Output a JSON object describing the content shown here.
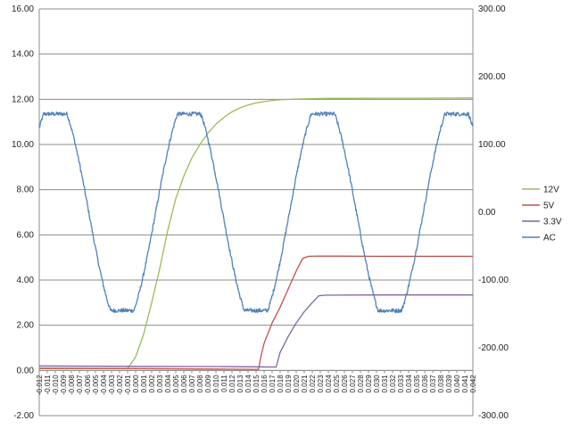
{
  "chart_data": {
    "type": "line",
    "x": {
      "min": -0.012,
      "max": 0.042,
      "step": 0.001,
      "tick_labels": [
        "-0.012",
        "-0.011",
        "-0.010",
        "-0.009",
        "-0.008",
        "-0.007",
        "-0.006",
        "-0.005",
        "-0.004",
        "-0.003",
        "-0.002",
        "-0.001",
        "0.000",
        "0.001",
        "0.002",
        "0.003",
        "0.004",
        "0.005",
        "0.006",
        "0.007",
        "0.008",
        "0.009",
        "0.010",
        "0.011",
        "0.012",
        "0.013",
        "0.014",
        "0.015",
        "0.016",
        "0.017",
        "0.018",
        "0.019",
        "0.020",
        "0.021",
        "0.022",
        "0.023",
        "0.024",
        "0.025",
        "0.026",
        "0.027",
        "0.028",
        "0.029",
        "0.030",
        "0.031",
        "0.032",
        "0.033",
        "0.034",
        "0.035",
        "0.036",
        "0.037",
        "0.038",
        "0.039",
        "0.040",
        "0.041",
        "0.042"
      ]
    },
    "y_left": {
      "min": -2,
      "max": 16,
      "tick_labels": [
        "-2.00",
        "0.00",
        "2.00",
        "4.00",
        "6.00",
        "8.00",
        "10.00",
        "12.00",
        "14.00",
        "16.00"
      ]
    },
    "y_right": {
      "min": -300,
      "max": 300,
      "tick_labels": [
        "-300.00",
        "-200.00",
        "-100.00",
        "0.00",
        "100.00",
        "200.00",
        "300.00"
      ]
    },
    "grid": "horizontal",
    "legend_position": "right",
    "series": [
      {
        "name": "12V",
        "axis": "left",
        "color": "#9BBB59",
        "points": [
          [
            -0.012,
            0.08
          ],
          [
            -0.002,
            0.08
          ],
          [
            -0.001,
            0.08
          ],
          [
            0.0,
            0.6
          ],
          [
            0.001,
            1.6
          ],
          [
            0.002,
            3.0
          ],
          [
            0.003,
            4.5
          ],
          [
            0.004,
            6.2
          ],
          [
            0.005,
            7.6
          ],
          [
            0.006,
            8.6
          ],
          [
            0.007,
            9.4
          ],
          [
            0.008,
            10.0
          ],
          [
            0.009,
            10.5
          ],
          [
            0.01,
            10.9
          ],
          [
            0.011,
            11.2
          ],
          [
            0.012,
            11.45
          ],
          [
            0.013,
            11.62
          ],
          [
            0.014,
            11.75
          ],
          [
            0.015,
            11.84
          ],
          [
            0.016,
            11.9
          ],
          [
            0.017,
            11.95
          ],
          [
            0.018,
            11.98
          ],
          [
            0.02,
            12.01
          ],
          [
            0.022,
            12.03
          ],
          [
            0.024,
            12.04
          ],
          [
            0.026,
            12.04
          ],
          [
            0.03,
            12.05
          ],
          [
            0.035,
            12.05
          ],
          [
            0.042,
            12.06
          ]
        ]
      },
      {
        "name": "5V",
        "axis": "left",
        "color": "#C0504D",
        "points": [
          [
            -0.012,
            0.1
          ],
          [
            0.0,
            0.08
          ],
          [
            0.01,
            0.06
          ],
          [
            0.015,
            0.05
          ],
          [
            0.0153,
            0.05
          ],
          [
            0.0156,
            0.6
          ],
          [
            0.016,
            1.2
          ],
          [
            0.017,
            2.1
          ],
          [
            0.018,
            2.8
          ],
          [
            0.019,
            3.6
          ],
          [
            0.02,
            4.4
          ],
          [
            0.0208,
            4.95
          ],
          [
            0.0215,
            5.05
          ],
          [
            0.023,
            5.06
          ],
          [
            0.03,
            5.05
          ],
          [
            0.042,
            5.05
          ]
        ]
      },
      {
        "name": "3.3V",
        "axis": "left",
        "color": "#8064A2",
        "points": [
          [
            -0.012,
            0.2
          ],
          [
            0.0,
            0.18
          ],
          [
            0.01,
            0.17
          ],
          [
            0.015,
            0.16
          ],
          [
            0.0175,
            0.15
          ],
          [
            0.018,
            0.8
          ],
          [
            0.019,
            1.5
          ],
          [
            0.02,
            2.1
          ],
          [
            0.021,
            2.6
          ],
          [
            0.022,
            3.0
          ],
          [
            0.0228,
            3.3
          ],
          [
            0.0235,
            3.33
          ],
          [
            0.03,
            3.34
          ],
          [
            0.042,
            3.34
          ]
        ]
      },
      {
        "name": "AC",
        "axis": "right",
        "color": "#4F81BD",
        "wave": {
          "x_start": -0.012,
          "x_end": 0.042,
          "amplitude": 170,
          "plateau": 145,
          "frequency_hz": 60,
          "peak_at": -0.01,
          "noise": 3
        }
      }
    ]
  }
}
